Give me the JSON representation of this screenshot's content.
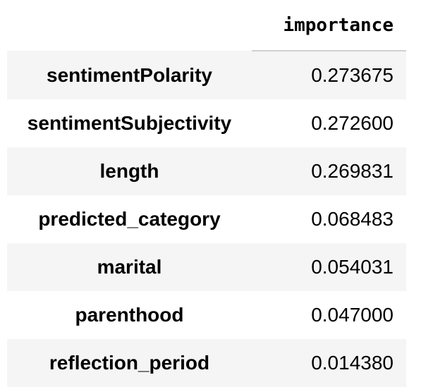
{
  "table": {
    "column_header": "importance",
    "rows": [
      {
        "index": "sentimentPolarity",
        "importance": "0.273675"
      },
      {
        "index": "sentimentSubjectivity",
        "importance": "0.272600"
      },
      {
        "index": "length",
        "importance": "0.269831"
      },
      {
        "index": "predicted_category",
        "importance": "0.068483"
      },
      {
        "index": "marital",
        "importance": "0.054031"
      },
      {
        "index": "parenthood",
        "importance": "0.047000"
      },
      {
        "index": "reflection_period",
        "importance": "0.014380"
      }
    ]
  },
  "colors": {
    "stripe": "#f5f5f5",
    "header_border": "#d0d0d0"
  }
}
